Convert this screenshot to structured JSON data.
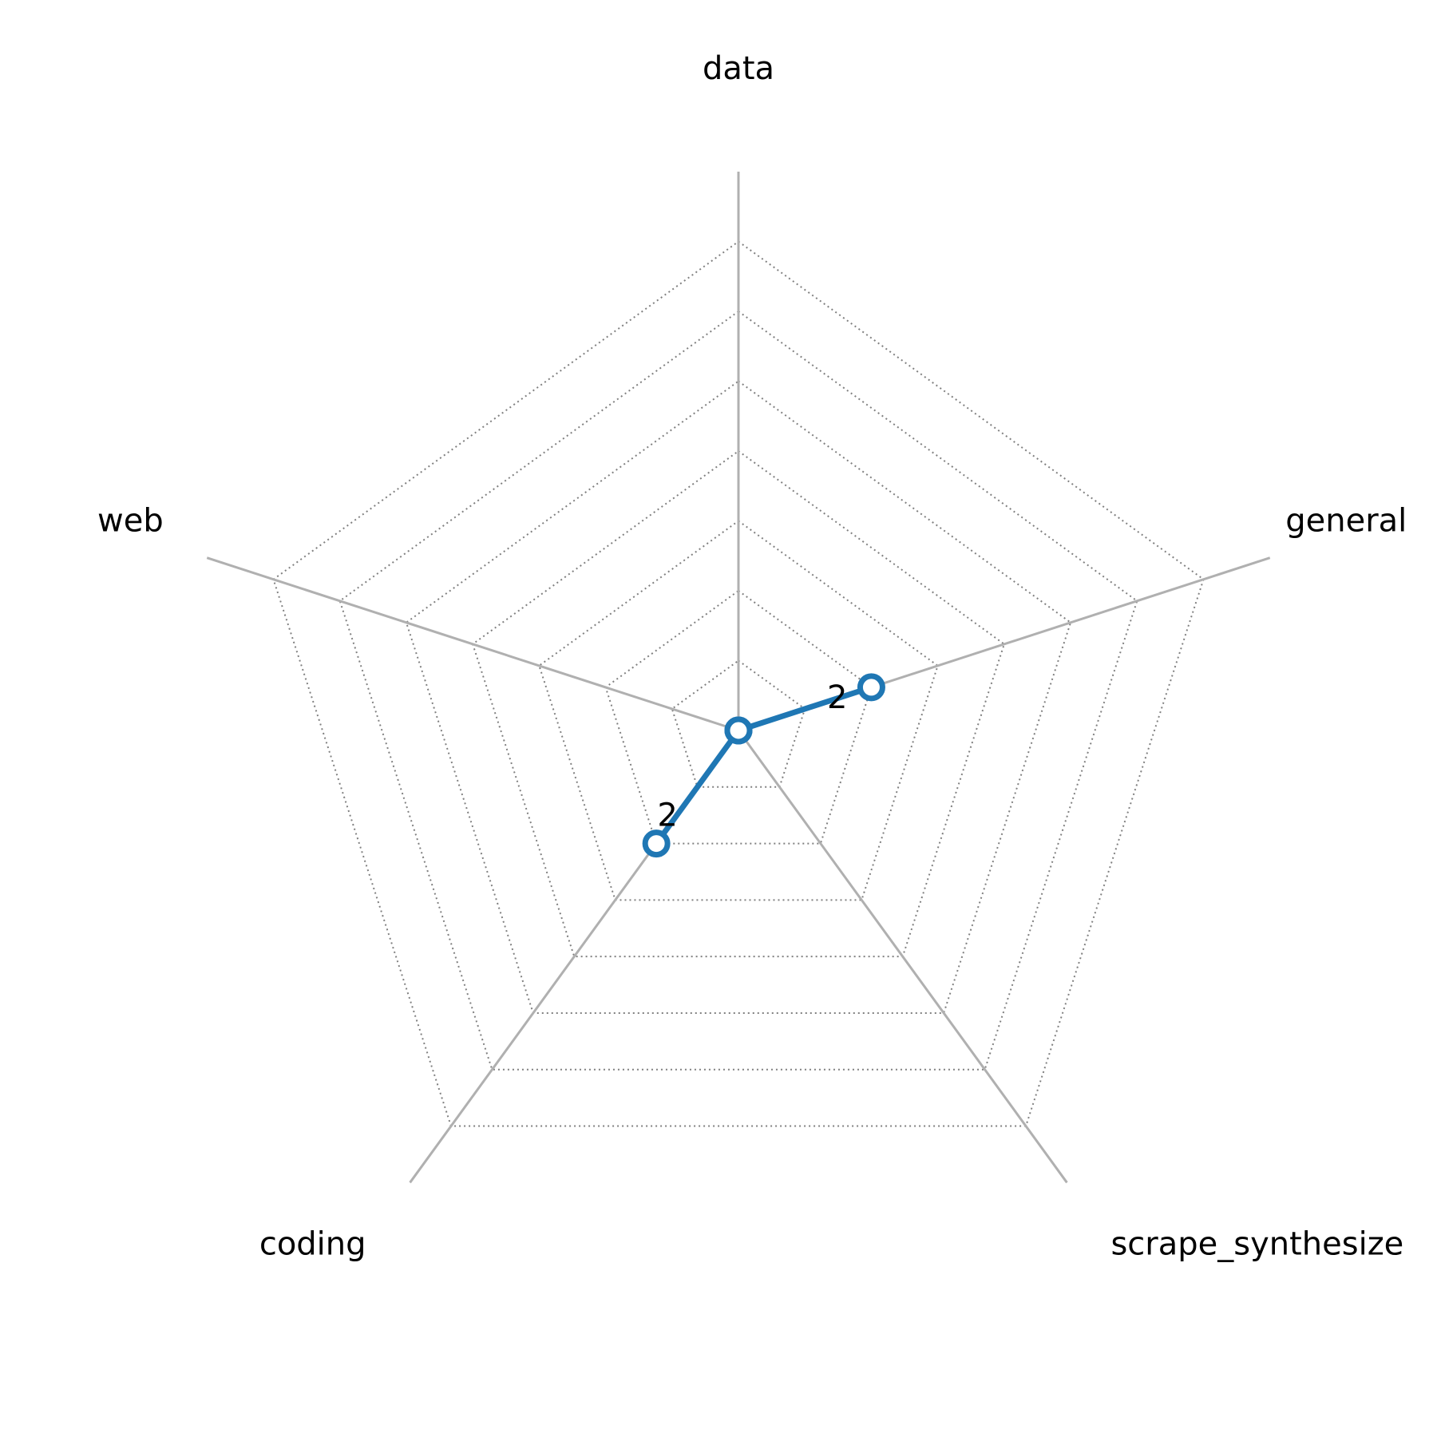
{
  "chart_data": {
    "type": "radar",
    "categories": [
      "data",
      "general",
      "scrape_synthesize",
      "coding",
      "web"
    ],
    "series": [
      {
        "values": [
          0,
          2,
          0,
          2,
          0
        ],
        "data_labels": [
          "",
          "2",
          "",
          "2",
          ""
        ]
      }
    ],
    "rlim": [
      0,
      8
    ],
    "grid_rings": [
      1,
      2,
      3,
      4,
      5,
      6,
      7
    ],
    "grid": true,
    "radial_tick_labels": false,
    "colors": {
      "series": "#1f77b4",
      "marker_fill": "#ffffff",
      "axis": "#b0b0b0",
      "grid": "#808080",
      "text": "#000000"
    }
  }
}
